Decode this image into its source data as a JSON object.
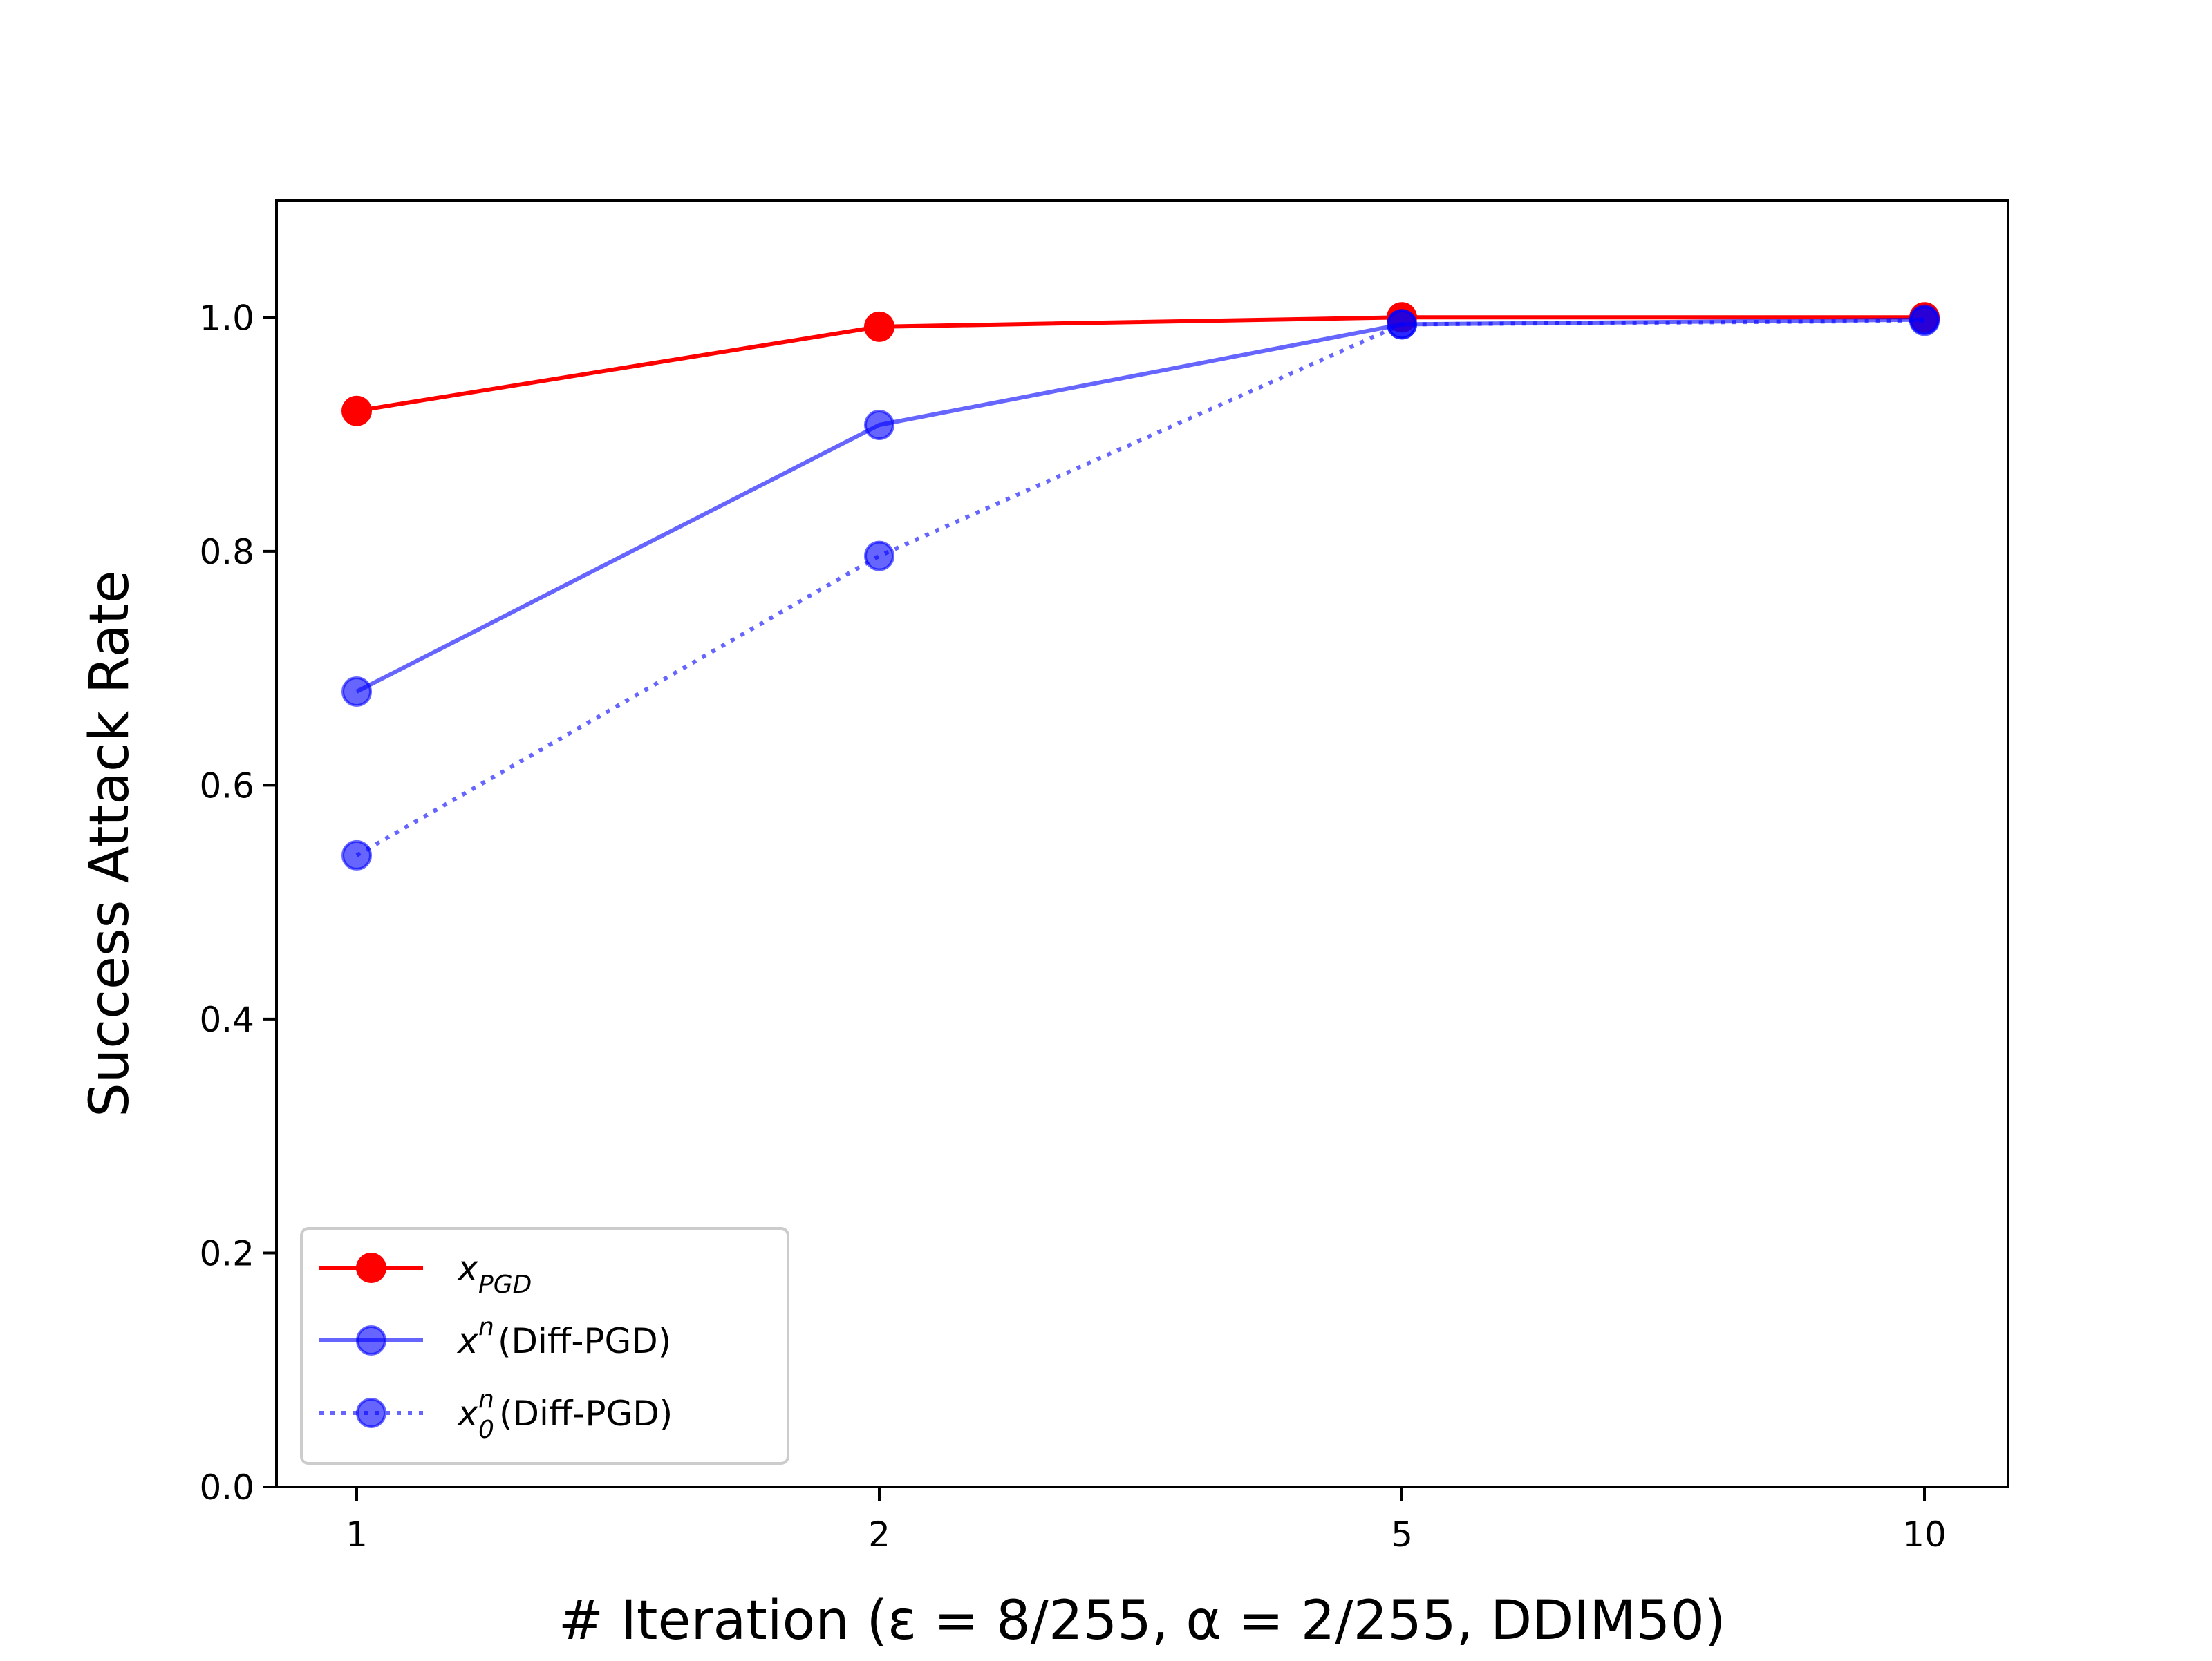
{
  "chart_data": {
    "type": "line",
    "xlabel": "# Iteration (ε = 8/255, α = 2/255, DDIM50)",
    "ylabel": "Success Attack Rate",
    "categories": [
      "1",
      "2",
      "5",
      "10"
    ],
    "ylim": [
      0.0,
      1.1
    ],
    "yticks": [
      "0.0",
      "0.2",
      "0.4",
      "0.6",
      "0.8",
      "1.0"
    ],
    "grid": false,
    "legend_position": "lower-left",
    "series": [
      {
        "name": "x",
        "name_sub": "PGD",
        "name_sup": "",
        "name_suffix": "",
        "color": "#ff0000",
        "opacity": 1.0,
        "line_style": "solid",
        "values": [
          0.92,
          0.992,
          1.0,
          1.0
        ]
      },
      {
        "name": "x",
        "name_sub": "",
        "name_sup": "n",
        "name_suffix": " (Diff-PGD)",
        "color": "#0000ff",
        "opacity": 0.6,
        "line_style": "solid",
        "values": [
          0.68,
          0.908,
          0.994,
          0.998
        ]
      },
      {
        "name": "x",
        "name_sub": "0",
        "name_sup": "n",
        "name_suffix": " (Diff-PGD)",
        "color": "#0000ff",
        "opacity": 0.6,
        "line_style": "dotted",
        "values": [
          0.54,
          0.796,
          0.994,
          0.997
        ]
      }
    ]
  }
}
